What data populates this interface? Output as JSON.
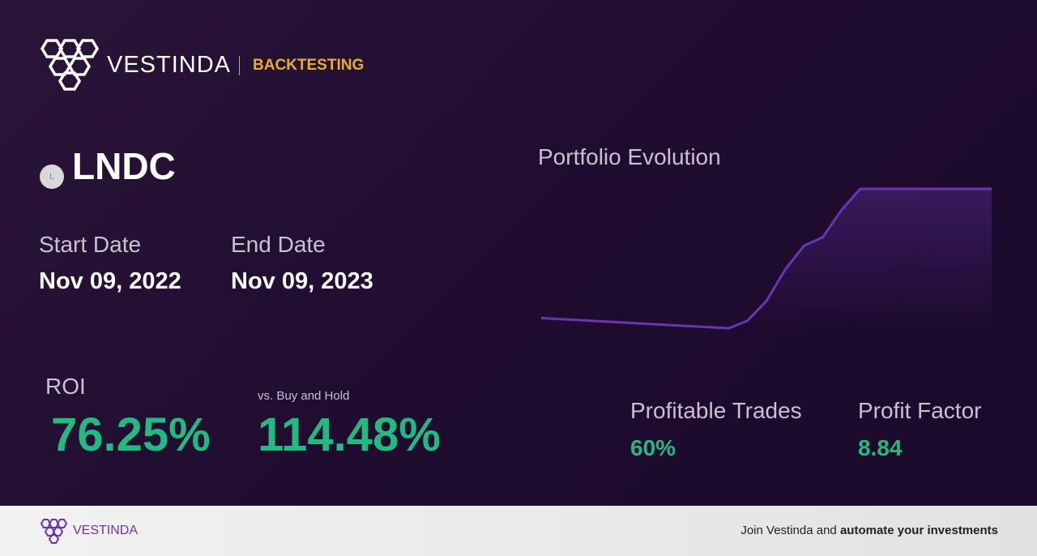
{
  "header": {
    "brand": "VESTINDA",
    "section": "BACKTESTING"
  },
  "asset": {
    "icon_letter": "L",
    "ticker": "LNDC"
  },
  "dates": {
    "start_label": "Start Date",
    "start": "Nov 09, 2022",
    "end_label": "End Date",
    "end": "Nov 09, 2023"
  },
  "metrics": {
    "roi_label": "ROI",
    "roi": "76.25%",
    "vs_label": "vs. Buy and Hold",
    "vs": "114.48%",
    "profitable_label": "Profitable Trades",
    "profitable": "60%",
    "factor_label": "Profit Factor",
    "factor": "8.84"
  },
  "chart_data": {
    "type": "line",
    "title": "Portfolio Evolution",
    "color": "#6a35b5",
    "values": [
      100,
      99.4,
      98.8,
      98.2,
      97.6,
      97,
      96.4,
      95.8,
      95.2,
      94.6,
      94,
      98.5,
      110,
      128.5,
      142.5,
      147.5,
      163.5,
      176,
      176,
      176,
      176,
      176,
      176,
      176,
      176
    ]
  },
  "footer": {
    "brand": "VESTINDA",
    "cta": "Join Vestinda and",
    "cta_bold": "automate your investments"
  }
}
